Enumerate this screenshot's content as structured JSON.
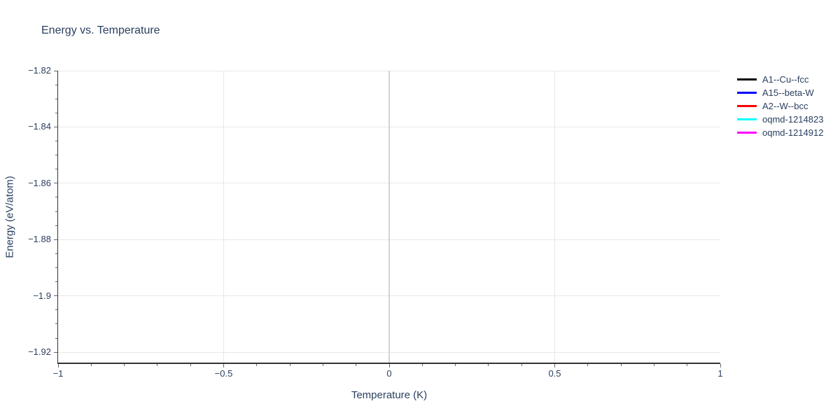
{
  "chart_data": {
    "type": "line",
    "title": "Energy vs. Temperature",
    "xlabel": "Temperature (K)",
    "ylabel": "Energy (eV/atom)",
    "x_range": [
      -1,
      1
    ],
    "y_range": [
      -1.9237,
      -1.82
    ],
    "x_ticks": [
      {
        "value": -1,
        "label": "−1"
      },
      {
        "value": -0.5,
        "label": "−0.5"
      },
      {
        "value": 0,
        "label": "0"
      },
      {
        "value": 0.5,
        "label": "0.5"
      },
      {
        "value": 1,
        "label": "1"
      }
    ],
    "y_ticks": [
      {
        "value": -1.82,
        "label": "−1.82"
      },
      {
        "value": -1.84,
        "label": "−1.84"
      },
      {
        "value": -1.86,
        "label": "−1.86"
      },
      {
        "value": -1.88,
        "label": "−1.88"
      },
      {
        "value": -1.9,
        "label": "−1.9"
      },
      {
        "value": -1.92,
        "label": "−1.92"
      }
    ],
    "x_minor_tick_step": 0.1,
    "y_minor_tick_step": 0.005,
    "x_zeroline_value": 0,
    "grid": true,
    "legend_position": "outside-top-right",
    "series": [
      {
        "name": "A1--Cu--fcc",
        "color": "#000000",
        "points": []
      },
      {
        "name": "A15--beta-W",
        "color": "#0000ff",
        "points": []
      },
      {
        "name": "A2--W--bcc",
        "color": "#ff0000",
        "points": []
      },
      {
        "name": "oqmd-1214823",
        "color": "#00ffff",
        "points": []
      },
      {
        "name": "oqmd-1214912",
        "color": "#ff00ff",
        "points": []
      }
    ],
    "colors": {
      "text": "#2a3f5f",
      "grid": "#e8e8e8",
      "zeroline": "#d4d4d4",
      "axis_line": "#333333",
      "tick": "#666666",
      "background": "#ffffff"
    }
  }
}
